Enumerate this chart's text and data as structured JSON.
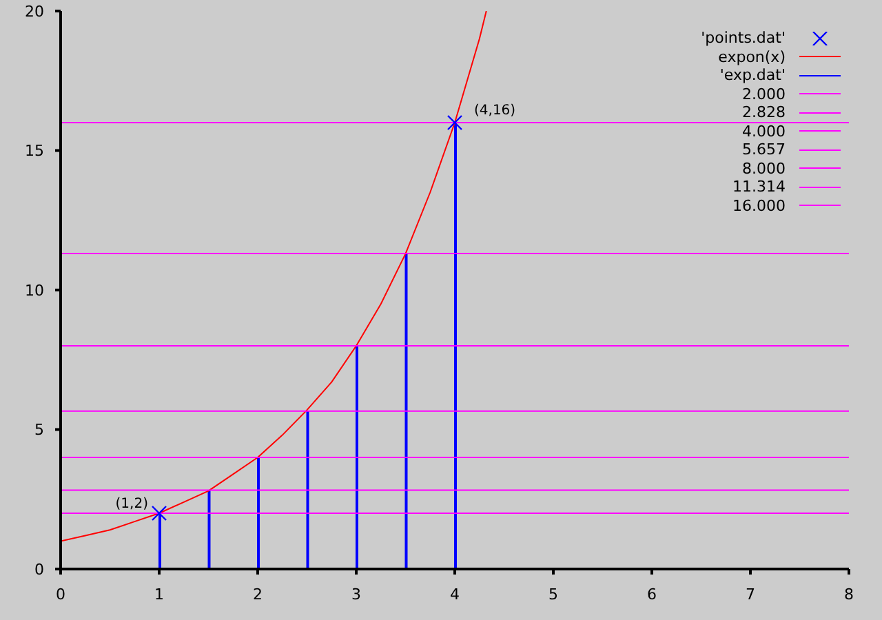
{
  "chart_data": {
    "type": "line",
    "xlim": [
      0,
      8
    ],
    "xticks": [
      0,
      1,
      2,
      3,
      4,
      5,
      6,
      7,
      8
    ],
    "ylim": [
      0,
      20
    ],
    "yticks": [
      0,
      5,
      10,
      15,
      20
    ],
    "legend": "top right",
    "annotations": [
      {
        "text": "(1,2)",
        "x": 1,
        "y": 2
      },
      {
        "text": "(4,16)",
        "x": 4,
        "y": 16
      }
    ],
    "series": [
      {
        "name": "'points.dat'",
        "type": "scatter",
        "color": "#0000ff",
        "marker": "cross",
        "x": [
          1,
          4
        ],
        "values": [
          2,
          16
        ]
      },
      {
        "name": "expon(x)",
        "color": "#ff0000",
        "x": [
          0,
          0.25,
          0.5,
          0.75,
          1,
          1.25,
          1.5,
          1.75,
          2,
          2.25,
          2.5,
          2.75,
          3,
          3.25,
          3.5,
          3.75,
          4,
          4.25,
          4.32
        ],
        "values": [
          1,
          1.2,
          1.4,
          1.7,
          2,
          2.4,
          2.8,
          3.4,
          4,
          4.8,
          5.7,
          6.7,
          8,
          9.5,
          11.3,
          13.5,
          16,
          19,
          20
        ]
      },
      {
        "name": "'exp.dat'",
        "type": "bar",
        "color": "#0000ff",
        "x": [
          1,
          1.5,
          2,
          2.5,
          3,
          3.5,
          4
        ],
        "values": [
          2,
          2.83,
          4,
          5.66,
          8,
          11.31,
          16
        ]
      },
      {
        "name": "2.000",
        "color": "#ff00ff",
        "x": [
          0,
          8
        ],
        "values": [
          2,
          2
        ]
      },
      {
        "name": "2.828",
        "color": "#ff00ff",
        "x": [
          0,
          8
        ],
        "values": [
          2.83,
          2.83
        ]
      },
      {
        "name": "4.000",
        "color": "#ff00ff",
        "x": [
          0,
          8
        ],
        "values": [
          4,
          4
        ]
      },
      {
        "name": "5.657",
        "color": "#ff00ff",
        "x": [
          0,
          8
        ],
        "values": [
          5.66,
          5.66
        ]
      },
      {
        "name": "8.000",
        "color": "#ff00ff",
        "x": [
          0,
          8
        ],
        "values": [
          8,
          8
        ]
      },
      {
        "name": "11.314",
        "color": "#ff00ff",
        "x": [
          0,
          8
        ],
        "values": [
          11.31,
          11.31
        ]
      },
      {
        "name": "16.000",
        "color": "#ff00ff",
        "x": [
          0,
          8
        ],
        "values": [
          16,
          16
        ]
      }
    ]
  }
}
